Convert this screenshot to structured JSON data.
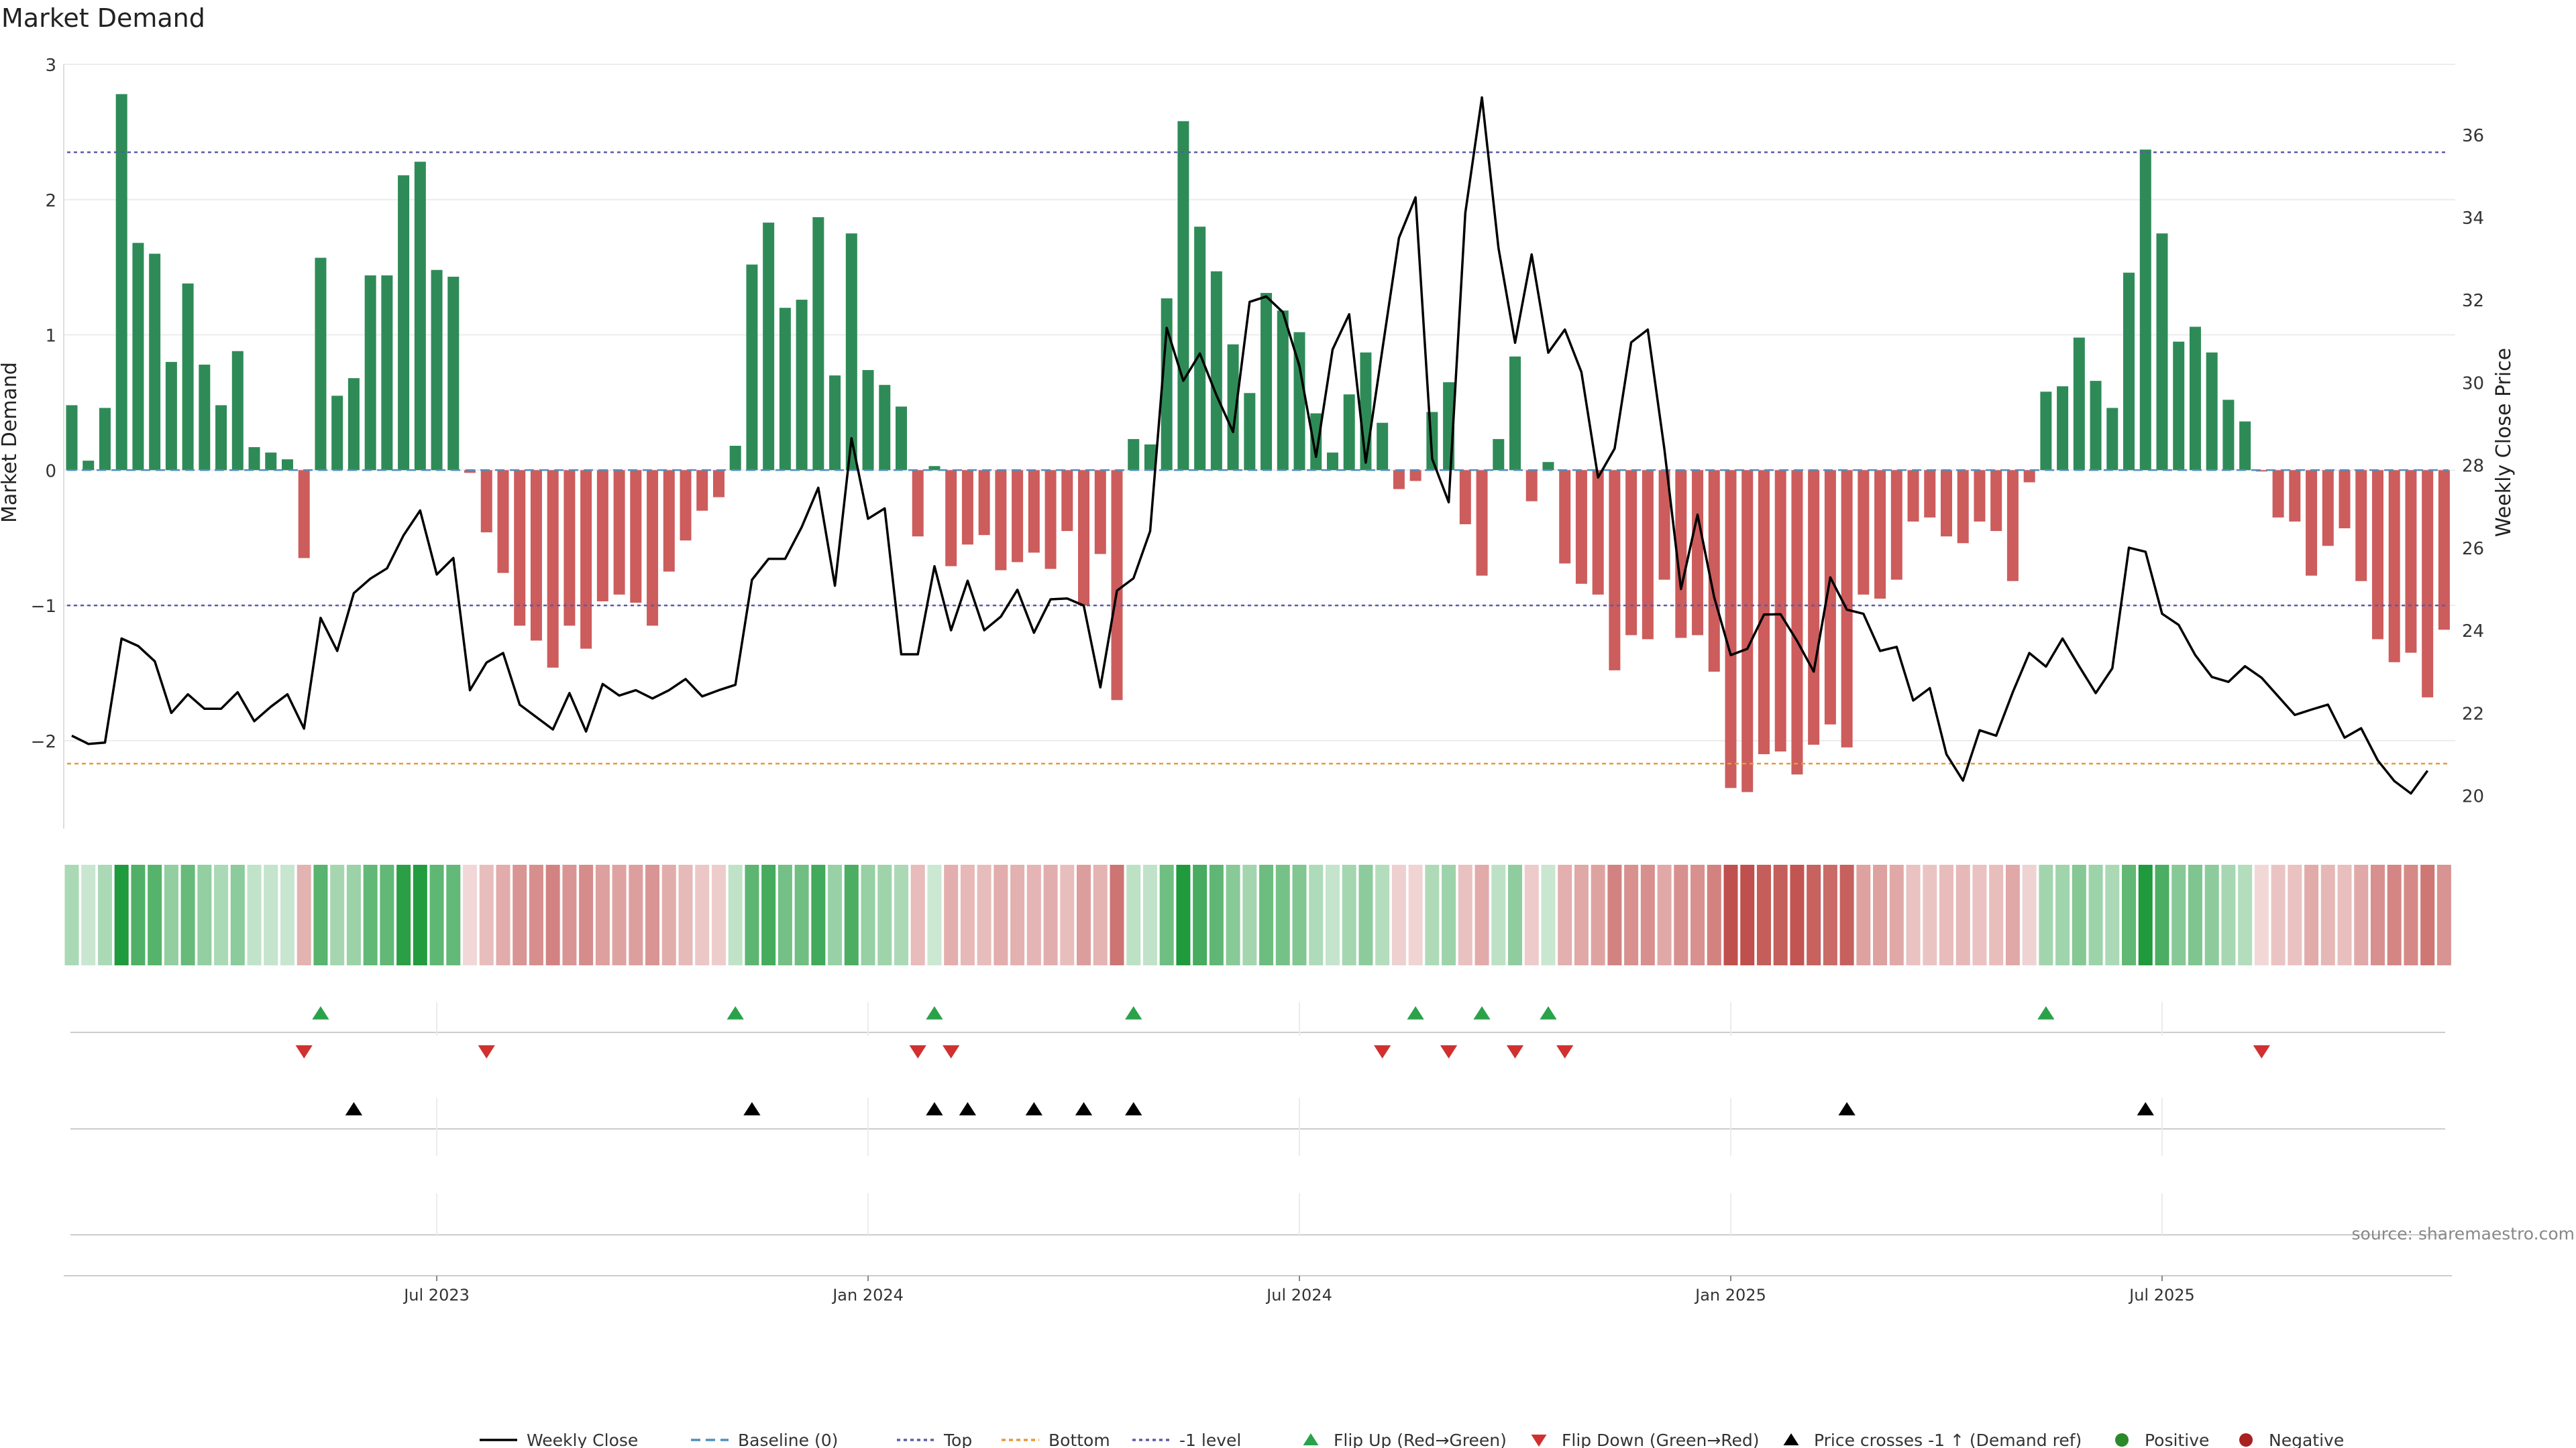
{
  "title": "Market Demand",
  "source_note": "source: sharemaestro.com",
  "colors": {
    "positive": "#2e8b57",
    "negative": "#cd5c5c",
    "top_line": "#5a5aa8",
    "bottom_line": "#e69a3a",
    "minus1_line": "#5a5aa8",
    "baseline": "#4f8fbf",
    "price": "#000000",
    "flip_up": "#2aa24a",
    "flip_down": "#d13030",
    "cross": "#000000",
    "legend_positive": "#2a8a2a",
    "legend_negative": "#a82020"
  },
  "chart_data": {
    "type": "bar+line",
    "title": "Market Demand",
    "ylabel": "Market Demand",
    "y2label": "Weekly Close Price",
    "ylim": [
      -2.65,
      3.0
    ],
    "y2lim": [
      19.2,
      37.7
    ],
    "yticks": [
      3,
      2,
      1,
      0,
      -1,
      -2
    ],
    "ytick_labels": [
      "3",
      "2",
      "1",
      "0",
      "−1",
      "−2"
    ],
    "y2ticks": [
      36,
      34,
      32,
      30,
      28,
      26,
      24,
      22,
      20
    ],
    "xticks": [
      {
        "index": 22,
        "label": "Jul 2023"
      },
      {
        "index": 48,
        "label": "Jan 2024"
      },
      {
        "index": 74,
        "label": "Jul 2024"
      },
      {
        "index": 100,
        "label": "Jan 2025"
      },
      {
        "index": 126,
        "label": "Jul 2025"
      }
    ],
    "levels": {
      "top": 2.35,
      "bottom": -2.17,
      "minus1": -1.0,
      "baseline": 0
    },
    "demand": [
      0.48,
      0.07,
      0.46,
      2.78,
      1.68,
      1.6,
      0.8,
      1.38,
      0.78,
      0.48,
      0.88,
      0.17,
      0.13,
      0.08,
      -0.65,
      1.57,
      0.55,
      0.68,
      1.44,
      1.44,
      2.18,
      2.28,
      1.48,
      1.43,
      -0.02,
      -0.46,
      -0.76,
      -1.15,
      -1.26,
      -1.46,
      -1.15,
      -1.32,
      -0.97,
      -0.92,
      -0.98,
      -1.15,
      -0.75,
      -0.52,
      -0.3,
      -0.2,
      0.18,
      1.52,
      1.83,
      1.2,
      1.26,
      1.87,
      0.7,
      1.75,
      0.74,
      0.63,
      0.47,
      -0.49,
      0.03,
      -0.71,
      -0.55,
      -0.48,
      -0.74,
      -0.68,
      -0.61,
      -0.73,
      -0.45,
      -1.0,
      -0.62,
      -1.7,
      0.23,
      0.19,
      1.27,
      2.58,
      1.8,
      1.47,
      0.93,
      0.57,
      1.31,
      1.18,
      1.02,
      0.42,
      0.13,
      0.56,
      0.87,
      0.35,
      -0.14,
      -0.08,
      0.43,
      0.65,
      -0.4,
      -0.78,
      0.23,
      0.84,
      -0.23,
      0.06,
      -0.69,
      -0.84,
      -0.92,
      -1.48,
      -1.22,
      -1.25,
      -0.81,
      -1.24,
      -1.22,
      -1.49,
      -2.35,
      -2.38,
      -2.1,
      -2.08,
      -2.25,
      -2.03,
      -1.88,
      -2.05,
      -0.92,
      -0.95,
      -0.81,
      -0.38,
      -0.35,
      -0.49,
      -0.54,
      -0.38,
      -0.45,
      -0.82,
      -0.09,
      0.58,
      0.62,
      0.98,
      0.66,
      0.46,
      1.46,
      2.37,
      1.75,
      0.95,
      1.06,
      0.87,
      0.52,
      0.36,
      -0.01,
      -0.35,
      -0.38,
      -0.78,
      -0.56,
      -0.43,
      -0.82,
      -1.25,
      -1.42,
      -1.35,
      -1.68,
      -1.18
    ],
    "price": [
      21.45,
      21.25,
      21.28,
      23.8,
      23.62,
      23.25,
      22.0,
      22.45,
      22.1,
      22.1,
      22.5,
      21.8,
      22.15,
      22.45,
      21.62,
      24.3,
      23.5,
      24.9,
      25.25,
      25.5,
      26.3,
      26.9,
      25.35,
      25.75,
      22.55,
      23.22,
      23.45,
      22.2,
      21.9,
      21.6,
      22.48,
      21.55,
      22.7,
      22.42,
      22.55,
      22.35,
      22.55,
      22.82,
      22.4,
      22.55,
      22.68,
      25.22,
      25.73,
      25.73,
      26.5,
      27.45,
      25.08,
      28.65,
      26.7,
      26.95,
      23.42,
      23.42,
      25.55,
      24.0,
      25.2,
      24.0,
      24.33,
      24.98,
      23.94,
      24.75,
      24.77,
      24.6,
      22.62,
      24.96,
      25.26,
      26.4,
      31.32,
      30.04,
      30.7,
      29.69,
      28.8,
      31.95,
      32.08,
      31.7,
      30.4,
      28.2,
      30.8,
      31.65,
      28.06,
      30.8,
      33.5,
      34.48,
      28.15,
      27.1,
      34.1,
      36.9,
      33.25,
      30.96,
      33.1,
      30.72,
      31.28,
      30.25,
      27.7,
      28.4,
      30.97,
      31.28,
      28.38,
      25.0,
      26.8,
      24.8,
      23.4,
      23.55,
      24.38,
      24.39,
      23.74,
      23.0,
      25.28,
      24.5,
      24.4,
      23.5,
      23.6,
      22.3,
      22.6,
      21.0,
      20.36,
      21.58,
      21.45,
      22.5,
      23.45,
      23.12,
      23.8,
      23.13,
      22.48,
      23.08,
      26.0,
      25.9,
      24.4,
      24.13,
      23.4,
      22.87,
      22.75,
      23.13,
      22.85,
      22.4,
      21.95,
      22.08,
      22.2,
      21.4,
      21.63,
      20.85,
      20.35,
      20.05,
      20.6
    ],
    "flip_up_indices": [
      15,
      40,
      52,
      64,
      81,
      85,
      89,
      119
    ],
    "flip_down_indices": [
      14,
      25,
      51,
      53,
      79,
      83,
      87,
      90,
      132
    ],
    "price_cross_indices": [
      17,
      41,
      52,
      54,
      58,
      61,
      64,
      107,
      125
    ]
  },
  "legend": {
    "weekly_close": "Weekly Close",
    "baseline": "Baseline (0)",
    "top": "Top",
    "bottom": "Bottom",
    "minus1": "-1 level",
    "flip_up": "Flip Up (Red→Green)",
    "flip_down": "Flip Down (Green→Red)",
    "price_cross": "Price crosses -1 ↑ (Demand ref)",
    "positive": "Positive",
    "negative": "Negative"
  }
}
